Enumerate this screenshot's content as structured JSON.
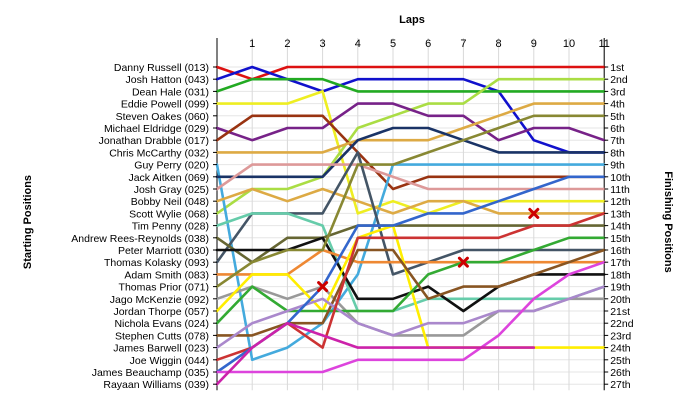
{
  "chart_data": {
    "type": "line",
    "title": "",
    "xlabel": "Laps",
    "ylabel_left": "Starting Positions",
    "ylabel_right": "Finishing Positions",
    "laps": [
      1,
      2,
      3,
      4,
      5,
      6,
      7,
      8,
      9,
      10,
      11
    ],
    "xlim": [
      0,
      11
    ],
    "ylim": [
      1,
      27
    ],
    "grid": true,
    "drivers": [
      "Danny Russell (013)",
      "Josh Hatton (043)",
      "Dean Hale (031)",
      "Eddie Powell (099)",
      "Steven Oakes (060)",
      "Michael Eldridge (029)",
      "Jonathan Drabble (017)",
      "Chris McCarthy (032)",
      "Guy Perry (020)",
      "Jack Aitken (069)",
      "Josh Gray (025)",
      "Bobby Neil (048)",
      "Scott Wylie (068)",
      "Tim Penny (028)",
      "Andrew Rees-Reynolds (038)",
      "Peter Marriott (030)",
      "Thomas Kolasky (093)",
      "Adam Smith (083)",
      "Thomas Prior (071)",
      "Jago McKenzie (092)",
      "Jordan Thorpe (057)",
      "Nichola Evans (024)",
      "Stephen Cutts (078)",
      "James Barwell (023)",
      "Joe Wiggin (044)",
      "James Beauchamp (035)",
      "Rayaan Williams (039)"
    ],
    "finishing_positions": [
      "1st",
      "2nd",
      "3rd",
      "4th",
      "5th",
      "6th",
      "7th",
      "8th",
      "9th",
      "10th",
      "11th",
      "12th",
      "13th",
      "14th",
      "15th",
      "16th",
      "17th",
      "18th",
      "19th",
      "20th",
      "21st",
      "22nd",
      "23rd",
      "24th",
      "25th",
      "26th",
      "27th"
    ],
    "series": [
      {
        "color": "#dd1111",
        "start": 1,
        "positions": [
          2,
          1,
          1,
          1,
          1,
          1,
          1,
          1,
          1,
          1,
          1
        ]
      },
      {
        "color": "#1111cc",
        "start": 2,
        "positions": [
          1,
          2,
          3,
          2,
          2,
          2,
          2,
          3,
          7,
          8,
          8
        ]
      },
      {
        "color": "#22aa22",
        "start": 3,
        "positions": [
          2,
          2,
          2,
          3,
          3,
          3,
          3,
          3,
          3,
          3,
          3
        ]
      },
      {
        "color": "#eeee22",
        "start": 4,
        "positions": [
          4,
          4,
          3,
          13,
          12,
          13,
          12,
          12,
          12,
          12,
          12
        ]
      },
      {
        "color": "#aadd44",
        "start": 13,
        "positions": [
          11,
          11,
          10,
          6,
          5,
          4,
          4,
          2,
          2,
          2,
          2
        ]
      },
      {
        "color": "#772288",
        "start": 6,
        "positions": [
          7,
          6,
          6,
          4,
          4,
          5,
          5,
          7,
          6,
          6,
          7
        ]
      },
      {
        "color": "#993311",
        "start": 7,
        "positions": [
          5,
          5,
          5,
          8,
          11,
          10,
          10,
          10,
          10,
          10,
          10
        ]
      },
      {
        "color": "#ddaa44",
        "start": 8,
        "positions": [
          8,
          8,
          8,
          7,
          7,
          7,
          6,
          5,
          4,
          4,
          4
        ]
      },
      {
        "color": "#44aadd",
        "start": 9,
        "positions": [
          25,
          24,
          22,
          18,
          9,
          9,
          9,
          9,
          9,
          9,
          9
        ]
      },
      {
        "color": "#1a3366",
        "start": 10,
        "positions": [
          10,
          10,
          10,
          7,
          6,
          6,
          7,
          8,
          8,
          8,
          8
        ]
      },
      {
        "color": "#dd9999",
        "start": 11,
        "positions": [
          9,
          9,
          9,
          9,
          10,
          11,
          11,
          11,
          11,
          11,
          11
        ]
      },
      {
        "color": "#ddaa44",
        "start": 12,
        "positions": [
          11,
          12,
          11,
          12,
          13,
          12,
          12,
          13,
          13,
          13,
          13
        ]
      },
      {
        "color": "#445566",
        "start": 17,
        "positions": [
          13,
          13,
          13,
          8,
          18,
          17,
          16,
          16,
          16,
          16,
          16
        ]
      },
      {
        "color": "#66ccaa",
        "start": 14,
        "positions": [
          13,
          13,
          14,
          21,
          21,
          20,
          20,
          20,
          20,
          20,
          19
        ]
      },
      {
        "color": "#666633",
        "start": 15,
        "positions": [
          17,
          15,
          15,
          14,
          14,
          14,
          14,
          14,
          14,
          14,
          14
        ]
      },
      {
        "color": "#111111",
        "start": 16,
        "positions": [
          16,
          16,
          15,
          20,
          20,
          19,
          21,
          19,
          18,
          18,
          18
        ]
      },
      {
        "color": "#ee8833",
        "start": 18,
        "positions": [
          18,
          18,
          16,
          17,
          17,
          17,
          17,
          17,
          17,
          17,
          17
        ]
      },
      {
        "color": "#888833",
        "start": 19,
        "positions": [
          17,
          16,
          16,
          9,
          9,
          8,
          7,
          6,
          5,
          5,
          5
        ]
      },
      {
        "color": "#999999",
        "start": 20,
        "positions": [
          19,
          20,
          19,
          22,
          23,
          23,
          23,
          21,
          21,
          20,
          20
        ]
      },
      {
        "color": "#ffee00",
        "start": 21,
        "positions": [
          18,
          18,
          21,
          15,
          14,
          24,
          24,
          24,
          24,
          24,
          24
        ]
      },
      {
        "color": "#33aa33",
        "start": 22,
        "positions": [
          19,
          21,
          21,
          21,
          21,
          18,
          17,
          17,
          16,
          15,
          15
        ]
      },
      {
        "color": "#885522",
        "start": 23,
        "positions": [
          23,
          22,
          22,
          16,
          16,
          20,
          19,
          19,
          18,
          17,
          16
        ]
      },
      {
        "color": "#aa88cc",
        "start": 24,
        "positions": [
          22,
          21,
          20,
          22,
          23,
          22,
          22,
          21,
          21,
          20,
          19
        ]
      },
      {
        "color": "#cc3333",
        "start": 25,
        "positions": [
          24,
          22,
          24,
          15,
          15,
          15,
          15,
          15,
          14,
          14,
          13
        ]
      },
      {
        "color": "#3366cc",
        "start": 26,
        "positions": [
          24,
          22,
          19,
          14,
          14,
          13,
          13,
          12,
          11,
          10,
          10
        ]
      },
      {
        "color": "#dd44dd",
        "start": 26,
        "positions": [
          26,
          26,
          26,
          25,
          25,
          25,
          25,
          23,
          20,
          18,
          17
        ]
      },
      {
        "color": "#cc22aa",
        "start": 27,
        "positions": [
          24,
          22,
          23,
          24,
          24,
          24,
          24,
          24,
          24,
          null,
          null
        ]
      }
    ],
    "markers": [
      {
        "lap": 3,
        "position": 19
      },
      {
        "lap": 7,
        "position": 17
      },
      {
        "lap": 9,
        "position": 13
      }
    ]
  }
}
